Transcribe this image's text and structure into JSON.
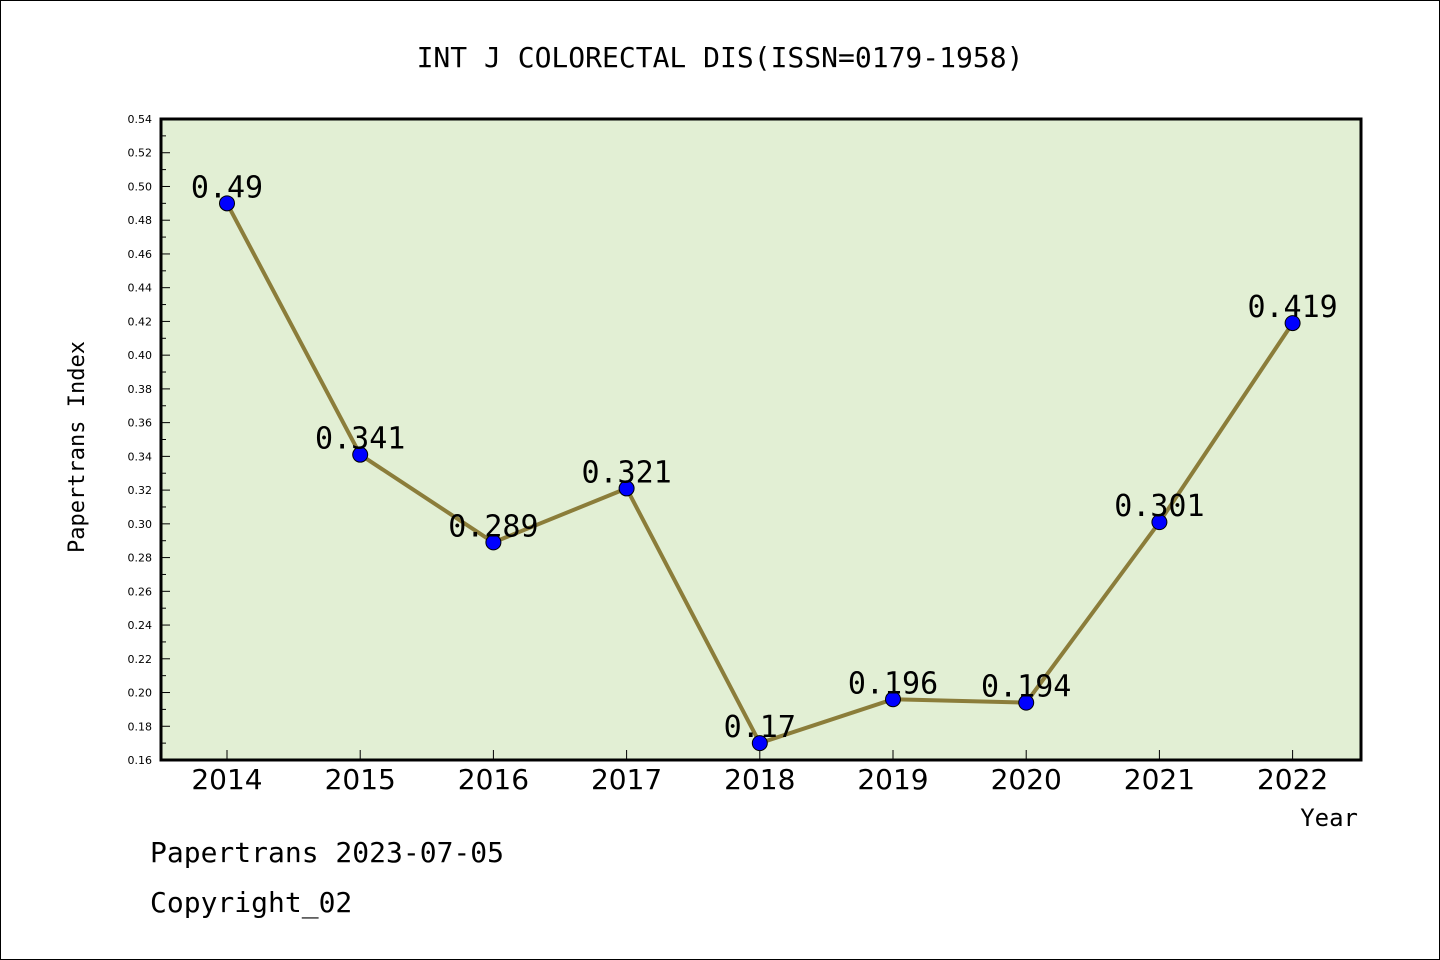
{
  "chart_data": {
    "type": "line",
    "title": "INT J COLORECTAL DIS(ISSN=0179-1958)",
    "xlabel": "Year",
    "ylabel": "Papertrans Index",
    "categories": [
      "2014",
      "2015",
      "2016",
      "2017",
      "2018",
      "2019",
      "2020",
      "2021",
      "2022"
    ],
    "series": [
      {
        "values": [
          0.49,
          0.341,
          0.289,
          0.321,
          0.17,
          0.196,
          0.194,
          0.301,
          0.419
        ]
      }
    ],
    "data_labels": [
      "0.49",
      "0.341",
      "0.289",
      "0.321",
      "0.17",
      "0.196",
      "0.194",
      "0.301",
      "0.419"
    ],
    "ylim": [
      0.16,
      0.54
    ],
    "yticks": [
      "0.16",
      "0.18",
      "0.20",
      "0.22",
      "0.24",
      "0.26",
      "0.28",
      "0.30",
      "0.32",
      "0.34",
      "0.36",
      "0.38",
      "0.40",
      "0.42",
      "0.44",
      "0.46",
      "0.48",
      "0.50",
      "0.52",
      "0.54"
    ],
    "grid": false,
    "colors": {
      "line": "#8b7d3a",
      "marker": "#0000ff",
      "plot_background": "#e2efd4"
    }
  },
  "footer": {
    "date": "Papertrans 2023-07-05",
    "copyright": "Copyright_02"
  }
}
